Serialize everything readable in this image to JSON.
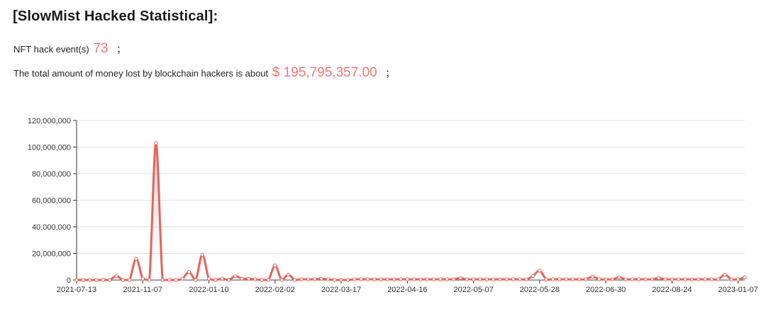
{
  "page": {
    "title": "[SlowMist Hacked Statistical]:",
    "event_label": "NFT hack event(s)",
    "event_count": "73",
    "money_label": "The total amount of money lost by blockchain hackers is about",
    "money_value": "$ 195,795,357.00",
    "semicolon": "；"
  },
  "colors": {
    "line": "#e8625a",
    "highlight": "#ef7770",
    "grid": "#e0e0e0",
    "axis": "#333333"
  },
  "chart_data": {
    "type": "area",
    "title": "",
    "xlabel": "",
    "ylabel": "",
    "ylim": [
      0,
      120000000
    ],
    "yticks": [
      0,
      20000000,
      40000000,
      60000000,
      80000000,
      100000000,
      120000000
    ],
    "ytick_labels": [
      "0",
      "20,000,000",
      "40,000,000",
      "60,000,000",
      "80,000,000",
      "100,000,000",
      "120,000,000"
    ],
    "xtick_labels": [
      "2021-07-13",
      "2021-11-07",
      "2022-01-10",
      "2022-02-02",
      "2022-03-17",
      "2022-04-16",
      "2022-05-07",
      "2022-05-28",
      "2022-06-30",
      "2022-08-24",
      "2023-01-07"
    ],
    "xtick_indices": [
      0,
      10,
      20,
      30,
      40,
      50,
      60,
      70,
      80,
      90,
      100
    ],
    "grid": true,
    "legend": "none",
    "series": [
      {
        "values": [
          0,
          0,
          0,
          0,
          0,
          0,
          3000000,
          0,
          0,
          16000000,
          1000000,
          0,
          103000000,
          0,
          0,
          0,
          1000000,
          6000000,
          0,
          19000000,
          1000000,
          0,
          1000000,
          0,
          3000000,
          1000000,
          1000000,
          500000,
          0,
          0,
          11000000,
          0,
          4000000,
          0,
          500000,
          500000,
          500000,
          1000000,
          500000,
          0,
          0,
          0,
          500000,
          500000,
          500000,
          500000,
          500000,
          500000,
          500000,
          500000,
          500000,
          500000,
          500000,
          500000,
          500000,
          500000,
          500000,
          500000,
          1500000,
          500000,
          500000,
          500000,
          500000,
          500000,
          500000,
          500000,
          500000,
          500000,
          500000,
          3000000,
          7000000,
          500000,
          500000,
          500000,
          500000,
          500000,
          500000,
          500000,
          2500000,
          500000,
          500000,
          500000,
          2000000,
          500000,
          500000,
          500000,
          500000,
          500000,
          1500000,
          500000,
          500000,
          500000,
          500000,
          500000,
          500000,
          500000,
          500000,
          500000,
          4000000,
          500000,
          500000,
          2000000
        ]
      }
    ]
  }
}
